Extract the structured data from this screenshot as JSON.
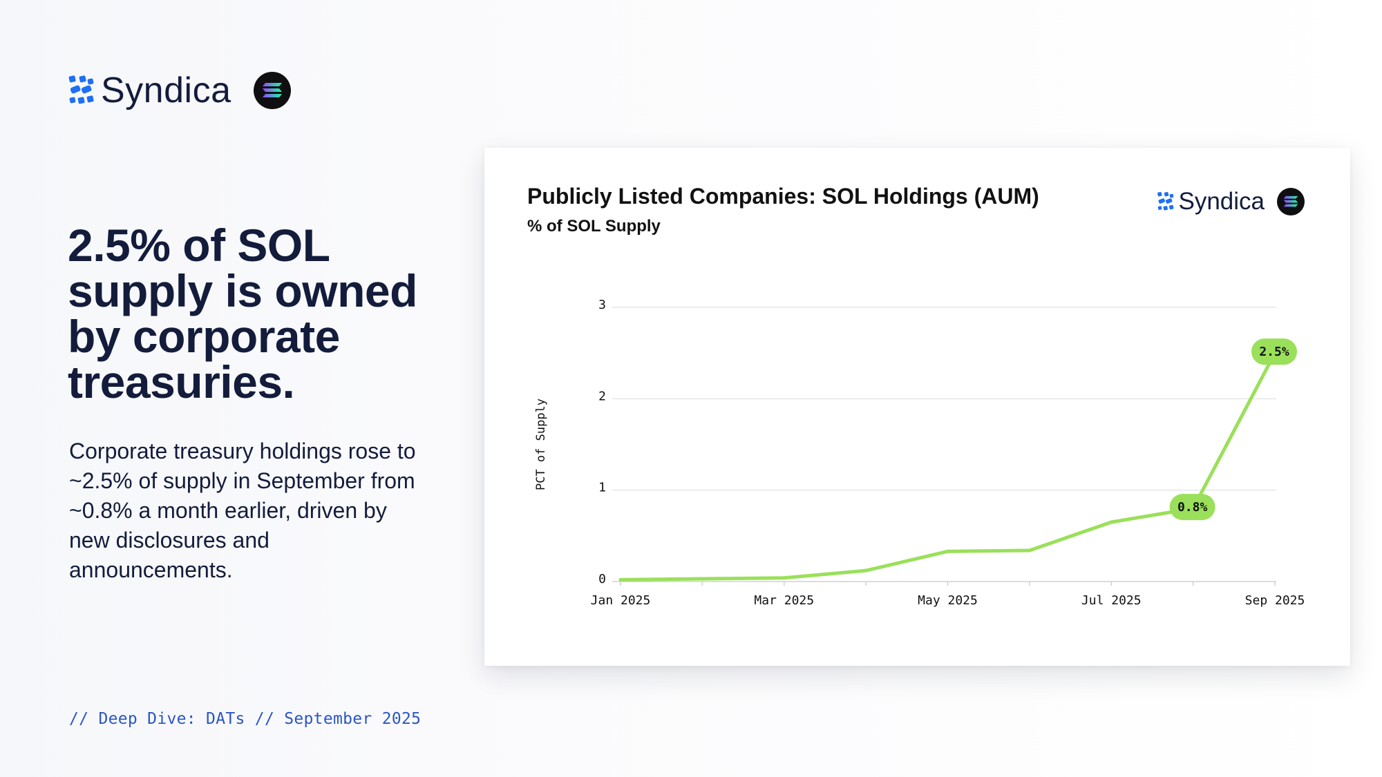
{
  "brand": {
    "name": "Syndica"
  },
  "headline": "2.5% of SOL supply is owned by corporate treasuries.",
  "body": "Corporate treasury holdings rose to ~2.5% of supply in September from ~0.8% a month earlier, driven by new disclosures and announcements.",
  "footer": "// Deep Dive: DATs // September 2025",
  "colors": {
    "line": "#9ae05a",
    "navy": "#131c3b",
    "accent_blue": "#2b55c4",
    "grid": "#e6e6e6"
  },
  "chart_data": {
    "type": "line",
    "title": "Publicly Listed Companies: SOL Holdings (AUM)",
    "subtitle": "% of SOL Supply",
    "xlabel": "",
    "ylabel": "PCT of Supply",
    "x": [
      "2025-01",
      "2025-02",
      "2025-03",
      "2025-04",
      "2025-05",
      "2025-06",
      "2025-07",
      "2025-08",
      "2025-09"
    ],
    "x_tick_labels": [
      "Jan 2025",
      "Mar 2025",
      "May 2025",
      "Jul 2025",
      "Sep 2025"
    ],
    "x_tick_indices": [
      0,
      2,
      4,
      6,
      8
    ],
    "series": [
      {
        "name": "PCT of Supply",
        "values": [
          0.02,
          0.03,
          0.04,
          0.12,
          0.33,
          0.34,
          0.65,
          0.8,
          2.5
        ]
      }
    ],
    "ylim": [
      0,
      3
    ],
    "yticks": [
      0,
      1,
      2,
      3
    ],
    "grid": true,
    "annotations": [
      {
        "index": 7,
        "text": "0.8%"
      },
      {
        "index": 8,
        "text": "2.5%"
      }
    ]
  }
}
